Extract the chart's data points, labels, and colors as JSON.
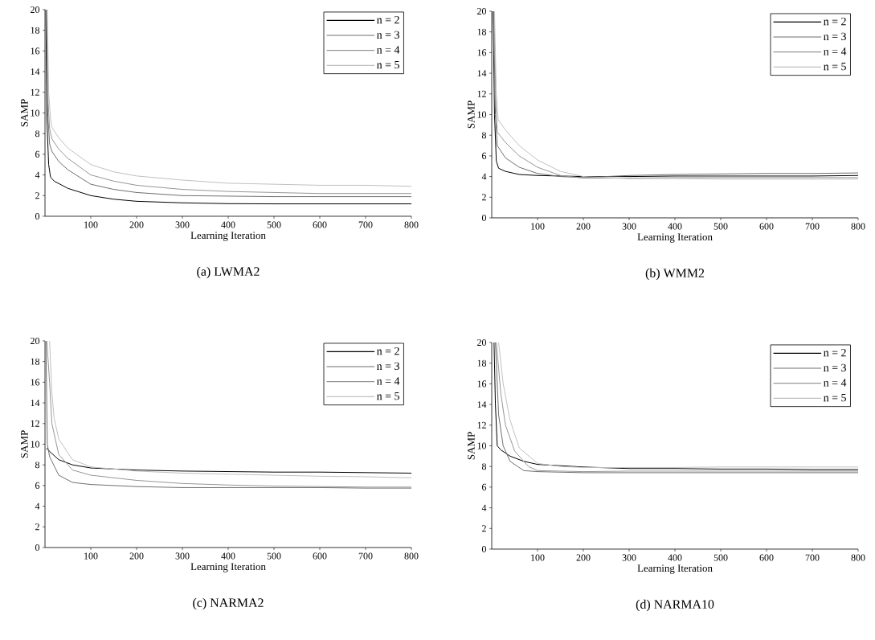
{
  "chart_data": [
    {
      "type": "line",
      "title": "(a)  LWMA2",
      "xlabel": "Learning Iteration",
      "ylabel": "SAMP",
      "xlim": [
        0,
        800
      ],
      "ylim": [
        0,
        20
      ],
      "xticks": [
        100,
        200,
        300,
        400,
        500,
        600,
        700,
        800
      ],
      "yticks": [
        0,
        2,
        4,
        6,
        8,
        10,
        12,
        14,
        16,
        18,
        20
      ],
      "legend": "top right",
      "series": [
        {
          "name": "n = 2",
          "color": "#000000",
          "x": [
            2,
            4,
            8,
            12,
            20,
            50,
            100,
            150,
            200,
            300,
            400,
            500,
            600,
            700,
            800
          ],
          "values": [
            20,
            9.5,
            5,
            3.8,
            3.4,
            2.7,
            2.0,
            1.65,
            1.45,
            1.3,
            1.22,
            1.2,
            1.2,
            1.2,
            1.2
          ]
        },
        {
          "name": "n = 3",
          "color": "#6e6e6e",
          "x": [
            3,
            6,
            10,
            15,
            30,
            50,
            100,
            150,
            200,
            300,
            400,
            500,
            600,
            700,
            800
          ],
          "values": [
            20,
            10,
            7,
            6.3,
            5.3,
            4.5,
            3.1,
            2.6,
            2.3,
            2.0,
            1.95,
            1.9,
            1.9,
            1.9,
            1.9
          ]
        },
        {
          "name": "n = 4",
          "color": "#969696",
          "x": [
            4,
            7,
            10,
            15,
            30,
            50,
            100,
            150,
            200,
            300,
            400,
            500,
            600,
            700,
            800
          ],
          "values": [
            20,
            11,
            8.5,
            7.5,
            6.5,
            5.6,
            4.0,
            3.4,
            3.0,
            2.6,
            2.4,
            2.3,
            2.2,
            2.2,
            2.2
          ]
        },
        {
          "name": "n = 5",
          "color": "#c0c0c0",
          "x": [
            5,
            8,
            12,
            15,
            30,
            50,
            100,
            150,
            200,
            300,
            400,
            500,
            600,
            700,
            800
          ],
          "values": [
            20,
            12,
            9.5,
            8.6,
            7.6,
            6.6,
            5.0,
            4.3,
            3.9,
            3.5,
            3.2,
            3.1,
            3.0,
            3.0,
            2.9
          ]
        }
      ]
    },
    {
      "type": "line",
      "title": "(b)  WMM2",
      "xlabel": "Learning Iteration",
      "ylabel": "SAMP",
      "xlim": [
        0,
        800
      ],
      "ylim": [
        0,
        20
      ],
      "xticks": [
        100,
        200,
        300,
        400,
        500,
        600,
        700,
        800
      ],
      "yticks": [
        0,
        2,
        4,
        6,
        8,
        10,
        12,
        14,
        16,
        18,
        20
      ],
      "legend": "top right",
      "series": [
        {
          "name": "n = 2",
          "color": "#000000",
          "x": [
            3,
            6,
            10,
            15,
            30,
            60,
            100,
            200,
            300,
            400,
            500,
            600,
            700,
            800
          ],
          "values": [
            20,
            10,
            5.5,
            4.8,
            4.5,
            4.2,
            4.1,
            4.0,
            4.0,
            4.05,
            4.05,
            4.05,
            4.05,
            4.1
          ]
        },
        {
          "name": "n = 3",
          "color": "#6e6e6e",
          "x": [
            4,
            8,
            12,
            30,
            60,
            100,
            150,
            200,
            300,
            400,
            500,
            600,
            700,
            800
          ],
          "values": [
            20,
            10,
            7,
            5.8,
            4.9,
            4.3,
            4.0,
            3.9,
            4.1,
            4.2,
            4.25,
            4.3,
            4.3,
            4.35
          ]
        },
        {
          "name": "n = 4",
          "color": "#969696",
          "x": [
            5,
            9,
            12,
            30,
            60,
            100,
            150,
            200,
            300,
            400,
            500,
            600,
            700,
            800
          ],
          "values": [
            20,
            11,
            8.3,
            7.3,
            6.0,
            4.9,
            4.1,
            3.85,
            3.85,
            3.9,
            3.9,
            3.9,
            3.9,
            3.9
          ]
        },
        {
          "name": "n = 5",
          "color": "#c0c0c0",
          "x": [
            6,
            10,
            14,
            30,
            60,
            100,
            150,
            200,
            300,
            400,
            500,
            600,
            700,
            800
          ],
          "values": [
            20,
            12,
            9.5,
            8.5,
            7.0,
            5.6,
            4.5,
            4.0,
            3.8,
            3.8,
            3.75,
            3.75,
            3.75,
            3.75
          ]
        }
      ]
    },
    {
      "type": "line",
      "title": "(c)  NARMA2",
      "xlabel": "Learning Iteration",
      "ylabel": "SAMP",
      "xlim": [
        0,
        800
      ],
      "ylim": [
        0,
        20
      ],
      "xticks": [
        100,
        200,
        300,
        400,
        500,
        600,
        700,
        800
      ],
      "yticks": [
        0,
        2,
        4,
        6,
        8,
        10,
        12,
        14,
        16,
        18,
        20
      ],
      "legend": "top right",
      "series": [
        {
          "name": "n = 2",
          "color": "#000000",
          "x": [
            3,
            5,
            10,
            30,
            60,
            100,
            200,
            300,
            400,
            500,
            600,
            700,
            800
          ],
          "values": [
            9.5,
            9.6,
            9.3,
            8.5,
            8.0,
            7.7,
            7.5,
            7.4,
            7.35,
            7.3,
            7.3,
            7.25,
            7.2
          ]
        },
        {
          "name": "n = 3",
          "color": "#6e6e6e",
          "x": [
            2,
            5,
            10,
            30,
            60,
            100,
            200,
            300,
            400,
            500,
            600,
            700,
            800
          ],
          "values": [
            20,
            10,
            8.8,
            7.0,
            6.3,
            6.1,
            5.9,
            5.8,
            5.8,
            5.8,
            5.8,
            5.75,
            5.75
          ]
        },
        {
          "name": "n = 4",
          "color": "#969696",
          "x": [
            4,
            10,
            15,
            30,
            60,
            100,
            200,
            300,
            400,
            500,
            600,
            700,
            800
          ],
          "values": [
            20,
            16,
            12,
            9.0,
            7.5,
            7.0,
            6.5,
            6.2,
            6.05,
            5.95,
            5.9,
            5.85,
            5.85
          ]
        },
        {
          "name": "n = 5",
          "color": "#c0c0c0",
          "x": [
            10,
            15,
            20,
            30,
            60,
            100,
            200,
            300,
            400,
            500,
            600,
            700,
            800
          ],
          "values": [
            20,
            15,
            12.5,
            10.5,
            8.5,
            7.8,
            7.4,
            7.2,
            7.1,
            7.0,
            6.9,
            6.85,
            6.75
          ]
        }
      ]
    },
    {
      "type": "line",
      "title": "(d)  NARMA10",
      "xlabel": "Learning Iteration",
      "ylabel": "SAMP",
      "xlim": [
        0,
        800
      ],
      "ylim": [
        0,
        20
      ],
      "xticks": [
        100,
        200,
        300,
        400,
        500,
        600,
        700,
        800
      ],
      "yticks": [
        0,
        2,
        4,
        6,
        8,
        10,
        12,
        14,
        16,
        18,
        20
      ],
      "legend": "top right",
      "series": [
        {
          "name": "n = 2",
          "color": "#000000",
          "x": [
            5,
            8,
            12,
            20,
            40,
            70,
            100,
            200,
            300,
            400,
            500,
            600,
            700,
            800
          ],
          "values": [
            20,
            14,
            10,
            9.6,
            9.0,
            8.5,
            8.2,
            7.95,
            7.8,
            7.8,
            7.75,
            7.75,
            7.7,
            7.7
          ]
        },
        {
          "name": "n = 3",
          "color": "#6e6e6e",
          "x": [
            8,
            15,
            25,
            40,
            70,
            100,
            200,
            300,
            400,
            500,
            600,
            700,
            800
          ],
          "values": [
            20,
            13,
            10,
            8.5,
            7.6,
            7.5,
            7.4,
            7.4,
            7.4,
            7.4,
            7.4,
            7.4,
            7.4
          ]
        },
        {
          "name": "n = 4",
          "color": "#969696",
          "x": [
            10,
            20,
            30,
            50,
            80,
            100,
            200,
            300,
            400,
            500,
            600,
            700,
            800
          ],
          "values": [
            20,
            15,
            12,
            9.5,
            8.0,
            7.6,
            7.5,
            7.55,
            7.55,
            7.55,
            7.55,
            7.55,
            7.55
          ]
        },
        {
          "name": "n = 5",
          "color": "#c0c0c0",
          "x": [
            15,
            25,
            40,
            60,
            100,
            150,
            200,
            300,
            400,
            500,
            600,
            700,
            800
          ],
          "values": [
            20,
            16,
            12.5,
            9.8,
            8.3,
            8.0,
            7.9,
            7.9,
            7.9,
            7.95,
            7.95,
            7.95,
            7.95
          ]
        }
      ]
    }
  ]
}
